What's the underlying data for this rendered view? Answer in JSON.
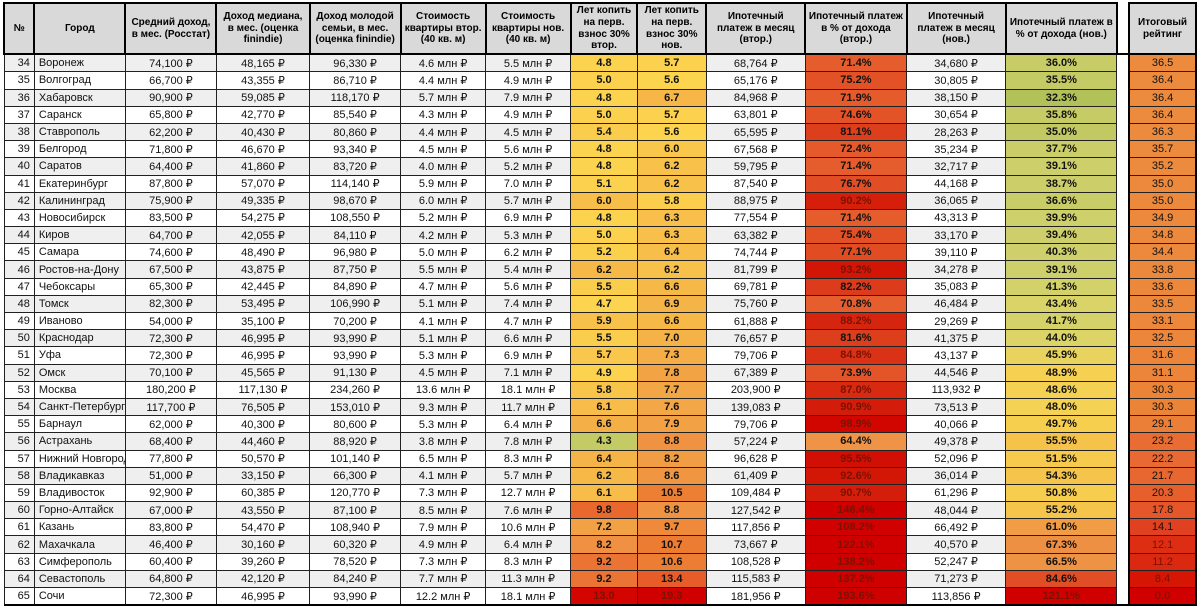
{
  "chart_data": {
    "type": "table",
    "row_range_shown": "34–65",
    "columns": [
      "№",
      "Город",
      "Средний доход, в мес. (Росстат)",
      "Доход медиана, в мес. (оценка finindie)",
      "Доход молодой семьи, в мес. (оценка finindie)",
      "Стоимость квартиры втор. (40 кв. м)",
      "Стоимость квартиры нов. (40 кв. м)",
      "Лет копить на перв. взнос 30% втор.",
      "Лет копить на перв. взнос 30% нов.",
      "Ипотечный платеж в месяц (втор.)",
      "Ипотечный платеж в % от дохода (втор.)",
      "Ипотечный платеж в месяц (нов.)",
      "Ипотечный платеж в % от дохода (нов.)",
      "Итоговый рейтинг"
    ],
    "rows": [
      [
        "34",
        "Воронеж",
        "74,100 ₽",
        "48,165 ₽",
        "96,330 ₽",
        "4.6 млн ₽",
        "5.5 млн ₽",
        "4.8",
        "5.7",
        "68,764 ₽",
        "71.4%",
        "34,680 ₽",
        "36.0%",
        "36.5"
      ],
      [
        "35",
        "Волгоград",
        "66,700 ₽",
        "43,355 ₽",
        "86,710 ₽",
        "4.4 млн ₽",
        "4.9 млн ₽",
        "5.0",
        "5.6",
        "65,176 ₽",
        "75.2%",
        "30,805 ₽",
        "35.5%",
        "36.4"
      ],
      [
        "36",
        "Хабаровск",
        "90,900 ₽",
        "59,085 ₽",
        "118,170 ₽",
        "5.7 млн ₽",
        "7.9 млн ₽",
        "4.8",
        "6.7",
        "84,968 ₽",
        "71.9%",
        "38,150 ₽",
        "32.3%",
        "36.4"
      ],
      [
        "37",
        "Саранск",
        "65,800 ₽",
        "42,770 ₽",
        "85,540 ₽",
        "4.3 млн ₽",
        "4.9 млн ₽",
        "5.0",
        "5.7",
        "63,801 ₽",
        "74.6%",
        "30,654 ₽",
        "35.8%",
        "36.4"
      ],
      [
        "38",
        "Ставрополь",
        "62,200 ₽",
        "40,430 ₽",
        "80,860 ₽",
        "4.4 млн ₽",
        "4.5 млн ₽",
        "5.4",
        "5.6",
        "65,595 ₽",
        "81.1%",
        "28,263 ₽",
        "35.0%",
        "36.3"
      ],
      [
        "39",
        "Белгород",
        "71,800 ₽",
        "46,670 ₽",
        "93,340 ₽",
        "4.5 млн ₽",
        "5.6 млн ₽",
        "4.8",
        "6.0",
        "67,568 ₽",
        "72.4%",
        "35,234 ₽",
        "37.7%",
        "35.7"
      ],
      [
        "40",
        "Саратов",
        "64,400 ₽",
        "41,860 ₽",
        "83,720 ₽",
        "4.0 млн ₽",
        "5.2 млн ₽",
        "4.8",
        "6.2",
        "59,795 ₽",
        "71.4%",
        "32,717 ₽",
        "39.1%",
        "35.2"
      ],
      [
        "41",
        "Екатеринбург",
        "87,800 ₽",
        "57,070 ₽",
        "114,140 ₽",
        "5.9 млн ₽",
        "7.0 млн ₽",
        "5.1",
        "6.2",
        "87,540 ₽",
        "76.7%",
        "44,168 ₽",
        "38.7%",
        "35.0"
      ],
      [
        "42",
        "Калининград",
        "75,900 ₽",
        "49,335 ₽",
        "98,670 ₽",
        "6.0 млн ₽",
        "5.7 млн ₽",
        "6.0",
        "5.8",
        "88,975 ₽",
        "90.2%",
        "36,065 ₽",
        "36.6%",
        "35.0"
      ],
      [
        "43",
        "Новосибирск",
        "83,500 ₽",
        "54,275 ₽",
        "108,550 ₽",
        "5.2 млн ₽",
        "6.9 млн ₽",
        "4.8",
        "6.3",
        "77,554 ₽",
        "71.4%",
        "43,313 ₽",
        "39.9%",
        "34.9"
      ],
      [
        "44",
        "Киров",
        "64,700 ₽",
        "42,055 ₽",
        "84,110 ₽",
        "4.2 млн ₽",
        "5.3 млн ₽",
        "5.0",
        "6.3",
        "63,382 ₽",
        "75.4%",
        "33,170 ₽",
        "39.4%",
        "34.8"
      ],
      [
        "45",
        "Самара",
        "74,600 ₽",
        "48,490 ₽",
        "96,980 ₽",
        "5.0 млн ₽",
        "6.2 млн ₽",
        "5.2",
        "6.4",
        "74,744 ₽",
        "77.1%",
        "39,110 ₽",
        "40.3%",
        "34.4"
      ],
      [
        "46",
        "Ростов-на-Дону",
        "67,500 ₽",
        "43,875 ₽",
        "87,750 ₽",
        "5.5 млн ₽",
        "5.4 млн ₽",
        "6.2",
        "6.2",
        "81,799 ₽",
        "93.2%",
        "34,278 ₽",
        "39.1%",
        "33.8"
      ],
      [
        "47",
        "Чебоксары",
        "65,300 ₽",
        "42,445 ₽",
        "84,890 ₽",
        "4.7 млн ₽",
        "5.6 млн ₽",
        "5.5",
        "6.6",
        "69,781 ₽",
        "82.2%",
        "35,083 ₽",
        "41.3%",
        "33.6"
      ],
      [
        "48",
        "Томск",
        "82,300 ₽",
        "53,495 ₽",
        "106,990 ₽",
        "5.1 млн ₽",
        "7.4 млн ₽",
        "4.7",
        "6.9",
        "75,760 ₽",
        "70.8%",
        "46,484 ₽",
        "43.4%",
        "33.5"
      ],
      [
        "49",
        "Иваново",
        "54,000 ₽",
        "35,100 ₽",
        "70,200 ₽",
        "4.1 млн ₽",
        "4.7 млн ₽",
        "5.9",
        "6.6",
        "61,888 ₽",
        "88.2%",
        "29,269 ₽",
        "41.7%",
        "33.1"
      ],
      [
        "50",
        "Краснодар",
        "72,300 ₽",
        "46,995 ₽",
        "93,990 ₽",
        "5.1 млн ₽",
        "6.6 млн ₽",
        "5.5",
        "7.0",
        "76,657 ₽",
        "81.6%",
        "41,375 ₽",
        "44.0%",
        "32.5"
      ],
      [
        "51",
        "Уфа",
        "72,300 ₽",
        "46,995 ₽",
        "93,990 ₽",
        "5.3 млн ₽",
        "6.9 млн ₽",
        "5.7",
        "7.3",
        "79,706 ₽",
        "84.8%",
        "43,137 ₽",
        "45.9%",
        "31.6"
      ],
      [
        "52",
        "Омск",
        "70,100 ₽",
        "45,565 ₽",
        "91,130 ₽",
        "4.5 млн ₽",
        "7.1 млн ₽",
        "4.9",
        "7.8",
        "67,389 ₽",
        "73.9%",
        "44,546 ₽",
        "48.9%",
        "31.1"
      ],
      [
        "53",
        "Москва",
        "180,200 ₽",
        "117,130 ₽",
        "234,260 ₽",
        "13.6 млн ₽",
        "18.1 млн ₽",
        "5.8",
        "7.7",
        "203,900 ₽",
        "87.0%",
        "113,932 ₽",
        "48.6%",
        "30.3"
      ],
      [
        "54",
        "Санкт-Петербург",
        "117,700 ₽",
        "76,505 ₽",
        "153,010 ₽",
        "9.3 млн ₽",
        "11.7 млн ₽",
        "6.1",
        "7.6",
        "139,083 ₽",
        "90.9%",
        "73,513 ₽",
        "48.0%",
        "30.3"
      ],
      [
        "55",
        "Барнаул",
        "62,000 ₽",
        "40,300 ₽",
        "80,600 ₽",
        "5.3 млн ₽",
        "6.4 млн ₽",
        "6.6",
        "7.9",
        "79,706 ₽",
        "98.9%",
        "40,066 ₽",
        "49.7%",
        "29.1"
      ],
      [
        "56",
        "Астрахань",
        "68,400 ₽",
        "44,460 ₽",
        "88,920 ₽",
        "3.8 млн ₽",
        "7.8 млн ₽",
        "4.3",
        "8.8",
        "57,224 ₽",
        "64.4%",
        "49,378 ₽",
        "55.5%",
        "23.2"
      ],
      [
        "57",
        "Нижний Новгород",
        "77,800 ₽",
        "50,570 ₽",
        "101,140 ₽",
        "6.5 млн ₽",
        "8.3 млн ₽",
        "6.4",
        "8.2",
        "96,628 ₽",
        "95.5%",
        "52,096 ₽",
        "51.5%",
        "22.2"
      ],
      [
        "58",
        "Владикавказ",
        "51,000 ₽",
        "33,150 ₽",
        "66,300 ₽",
        "4.1 млн ₽",
        "5.7 млн ₽",
        "6.2",
        "8.6",
        "61,409 ₽",
        "92.6%",
        "36,014 ₽",
        "54.3%",
        "21.7"
      ],
      [
        "59",
        "Владивосток",
        "92,900 ₽",
        "60,385 ₽",
        "120,770 ₽",
        "7.3 млн ₽",
        "12.7 млн ₽",
        "6.1",
        "10.5",
        "109,484 ₽",
        "90.7%",
        "61,296 ₽",
        "50.8%",
        "20.3"
      ],
      [
        "60",
        "Горно-Алтайск",
        "67,000 ₽",
        "43,550 ₽",
        "87,100 ₽",
        "8.5 млн ₽",
        "7.6 млн ₽",
        "9.8",
        "8.8",
        "127,542 ₽",
        "146.4%",
        "48,044 ₽",
        "55.2%",
        "17.8"
      ],
      [
        "61",
        "Казань",
        "83,800 ₽",
        "54,470 ₽",
        "108,940 ₽",
        "7.9 млн ₽",
        "10.6 млн ₽",
        "7.2",
        "9.7",
        "117,856 ₽",
        "108.2%",
        "66,492 ₽",
        "61.0%",
        "14.1"
      ],
      [
        "62",
        "Махачкала",
        "46,400 ₽",
        "30,160 ₽",
        "60,320 ₽",
        "4.9 млн ₽",
        "6.4 млн ₽",
        "8.2",
        "10.7",
        "73,667 ₽",
        "122.1%",
        "40,570 ₽",
        "67.3%",
        "12.1"
      ],
      [
        "63",
        "Симферополь",
        "60,400 ₽",
        "39,260 ₽",
        "78,520 ₽",
        "7.3 млн ₽",
        "8.3 млн ₽",
        "9.2",
        "10.6",
        "108,528 ₽",
        "138.2%",
        "52,247 ₽",
        "66.5%",
        "11.2"
      ],
      [
        "64",
        "Севастополь",
        "64,800 ₽",
        "42,120 ₽",
        "84,240 ₽",
        "7.7 млн ₽",
        "11.3 млн ₽",
        "9.2",
        "13.4",
        "115,583 ₽",
        "137.2%",
        "71,273 ₽",
        "84.6%",
        "8.4"
      ],
      [
        "65",
        "Сочи",
        "72,300 ₽",
        "46,995 ₽",
        "93,990 ₽",
        "12.2 млн ₽",
        "18.1 млн ₽",
        "13.0",
        "19.3",
        "181,956 ₽",
        "193.6%",
        "113,856 ₽",
        "121.1%",
        "0.0"
      ]
    ]
  },
  "colors": {
    "header_bg": "#d9d9d9",
    "row_even_bg": "#efefef",
    "row_odd_bg": "#ffffff",
    "border": "#212121",
    "dark_red_text": "#7c1100",
    "scales": {
      "years_secondary": [
        [
          4.3,
          "#c4cb65"
        ],
        [
          4.7,
          "#fcd44f"
        ],
        [
          5.5,
          "#facd4c"
        ],
        [
          6.2,
          "#f6b948"
        ],
        [
          7.2,
          "#f2a145"
        ],
        [
          8.2,
          "#ef9042"
        ],
        [
          9.2,
          "#eb7434"
        ],
        [
          9.8,
          "#e9682d"
        ],
        [
          11.4,
          "#e03a15"
        ],
        [
          13.0,
          "#d40400"
        ]
      ],
      "years_new": [
        [
          5.6,
          "#fcd44e"
        ],
        [
          6.2,
          "#f8c24a"
        ],
        [
          6.7,
          "#f6b748"
        ],
        [
          7.9,
          "#f2a245"
        ],
        [
          8.8,
          "#ef9342"
        ],
        [
          9.7,
          "#ee8a3a"
        ],
        [
          10.7,
          "#ec7c31"
        ],
        [
          13.4,
          "#e75c28"
        ],
        [
          16.0,
          "#dd3410"
        ],
        [
          19.3,
          "#d00000"
        ]
      ],
      "pct_secondary": [
        [
          64.4,
          "#ef9446"
        ],
        [
          70.8,
          "#e65e2e"
        ],
        [
          75.4,
          "#e25126"
        ],
        [
          82.2,
          "#dc3c1b"
        ],
        [
          88.2,
          "#d6250f"
        ],
        [
          93.2,
          "#d31506"
        ],
        [
          98.9,
          "#d10600"
        ],
        [
          110.0,
          "#d00000"
        ],
        [
          193.6,
          "#cf0000"
        ]
      ],
      "pct_new": [
        [
          32.3,
          "#b2c158"
        ],
        [
          36.0,
          "#c8cc66"
        ],
        [
          40.3,
          "#cfd06b"
        ],
        [
          44.0,
          "#dcd467"
        ],
        [
          48.0,
          "#f3d254"
        ],
        [
          49.7,
          "#f7cf4e"
        ],
        [
          55.5,
          "#f5c34a"
        ],
        [
          61.0,
          "#f09d45"
        ],
        [
          67.3,
          "#ee9044"
        ],
        [
          84.6,
          "#e14e26"
        ],
        [
          100.0,
          "#d40d00"
        ],
        [
          121.1,
          "#d00000"
        ]
      ],
      "rating": [
        [
          0,
          "#d00000"
        ],
        [
          8.4,
          "#d61504"
        ],
        [
          11.2,
          "#db2810"
        ],
        [
          12.1,
          "#dd2d12"
        ],
        [
          14.1,
          "#e04120"
        ],
        [
          17.8,
          "#e5562a"
        ],
        [
          20.3,
          "#e7602c"
        ],
        [
          23.2,
          "#e96d33"
        ],
        [
          29.1,
          "#eb7f37"
        ],
        [
          30.3,
          "#ec8438"
        ],
        [
          36.5,
          "#ec8b3e"
        ]
      ]
    }
  }
}
